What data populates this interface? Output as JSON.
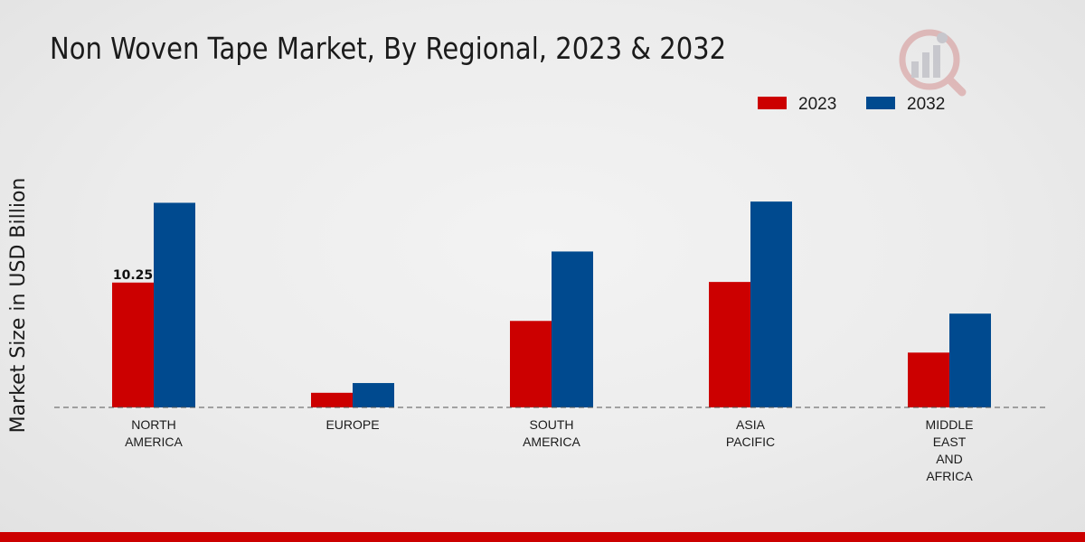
{
  "chart_data": {
    "type": "bar",
    "title": "Non Woven Tape Market, By Regional, 2023 & 2032",
    "xlabel": "",
    "ylabel": "Market Size in USD Billion",
    "categories": [
      [
        "NORTH",
        "AMERICA"
      ],
      [
        "EUROPE"
      ],
      [
        "SOUTH",
        "AMERICA"
      ],
      [
        "ASIA",
        "PACIFIC"
      ],
      [
        "MIDDLE",
        "EAST",
        "AND",
        "AFRICA"
      ]
    ],
    "series": [
      {
        "name": "2023",
        "color": "#cc0000",
        "values": [
          10.25,
          1.2,
          7.1,
          10.3,
          4.5
        ]
      },
      {
        "name": "2032",
        "color": "#004a8f",
        "values": [
          16.8,
          2.0,
          12.8,
          16.9,
          7.7
        ]
      }
    ],
    "data_labels": [
      {
        "series": 0,
        "index": 0,
        "text": "10.25"
      }
    ],
    "ylim": [
      0,
      29
    ],
    "grid": false,
    "legend": "top-right"
  }
}
